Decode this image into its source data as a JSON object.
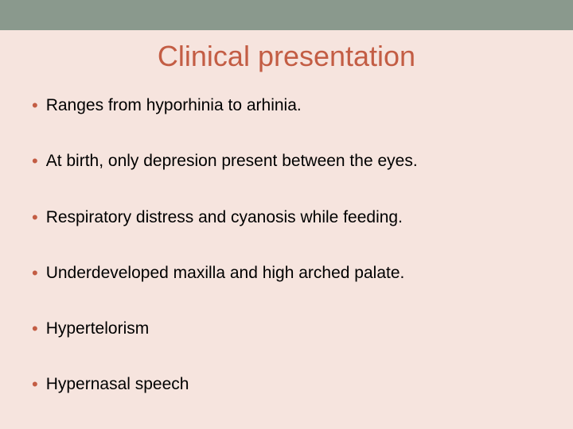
{
  "slide": {
    "title": "Clinical presentation",
    "title_color": "#c35d44",
    "title_fontsize": 36,
    "background_color": "#f6e4de",
    "top_bar_color": "#8a998d",
    "bullet_color": "#c35d44",
    "text_color": "#000000",
    "text_fontsize": 21,
    "bullets": [
      "Ranges from hyporhinia to arhinia.",
      "At birth, only depresion present between the eyes.",
      "Respiratory distress and cyanosis while feeding.",
      "Underdeveloped maxilla and high arched palate.",
      "Hypertelorism",
      "Hypernasal speech"
    ]
  }
}
